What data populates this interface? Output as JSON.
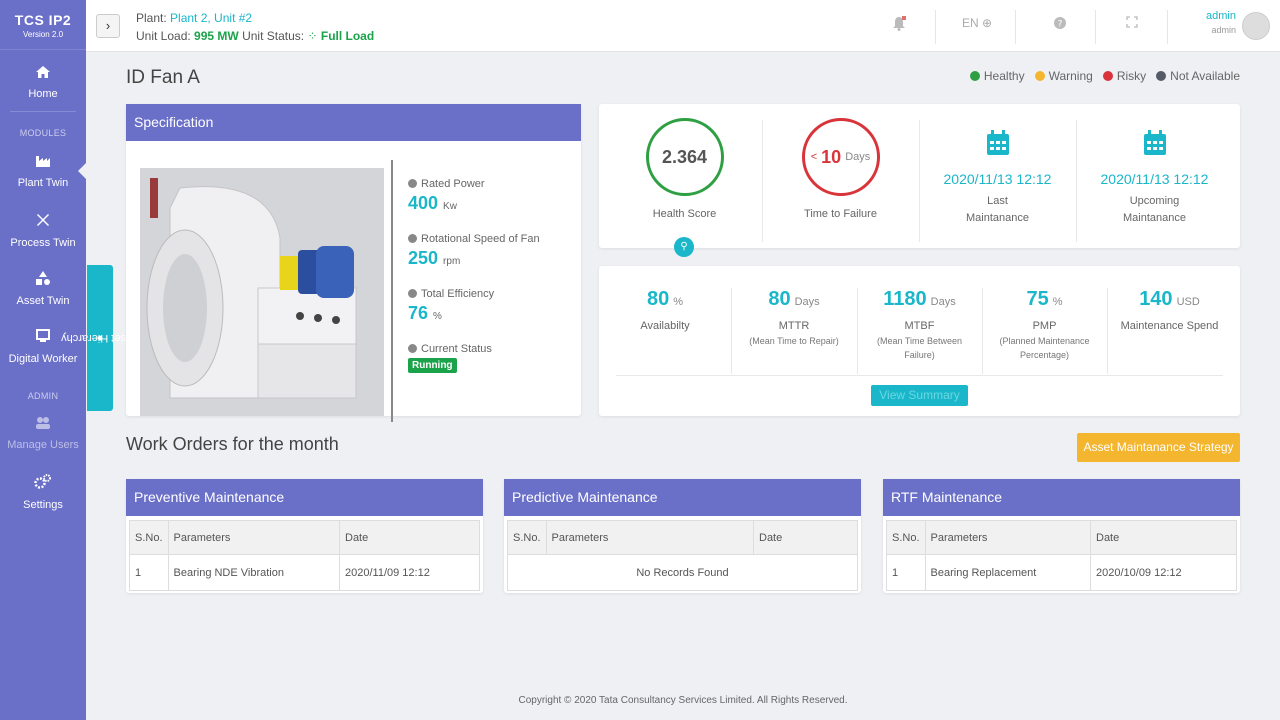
{
  "brand": {
    "name": "TCS IP2",
    "version": "Version 2.0"
  },
  "nav": {
    "home": "Home",
    "modules_label": "MODULES",
    "plant_twin": "Plant Twin",
    "process_twin": "Process Twin",
    "asset_twin": "Asset Twin",
    "digital_worker": "Digital Worker",
    "admin_label": "ADMIN",
    "manage_users": "Manage Users",
    "settings": "Settings"
  },
  "header": {
    "plant_label": "Plant:",
    "plant_value": "Plant 2, Unit #2",
    "unit_load_label": "Unit Load:",
    "unit_load_value": "995 MW",
    "unit_status_label": "Unit Status:",
    "unit_status_value": "Full Load",
    "language": "EN",
    "user_name": "admin",
    "user_role": "admin"
  },
  "asset_tab": "Asset Hierarchy",
  "page_title": "ID Fan A",
  "legend": [
    {
      "label": "Healthy",
      "color": "#2ea043"
    },
    {
      "label": "Warning",
      "color": "#f4b52f"
    },
    {
      "label": "Risky",
      "color": "#d9343a"
    },
    {
      "label": "Not Available",
      "color": "#555a66"
    }
  ],
  "spec": {
    "title": "Specification",
    "rated_power_label": "Rated Power",
    "rated_power_value": "400",
    "rated_power_unit": "Kw",
    "speed_label": "Rotational Speed of Fan",
    "speed_value": "250",
    "speed_unit": "rpm",
    "efficiency_label": "Total Efficiency",
    "efficiency_value": "76",
    "efficiency_unit": "%",
    "status_label": "Current Status",
    "status_value": "Running"
  },
  "health": {
    "score": "2.364",
    "score_label": "Health Score",
    "ttf_prefix": "<",
    "ttf_value": "10",
    "ttf_unit": "Days",
    "ttf_label": "Time to Failure",
    "last_date": "2020/11/13 12:12",
    "last_label_1": "Last",
    "last_label_2": "Maintanance",
    "upcoming_date": "2020/11/13 12:12",
    "upcoming_label_1": "Upcoming",
    "upcoming_label_2": "Maintanance"
  },
  "kpis": [
    {
      "value": "80",
      "unit": "%",
      "label": "Availabilty",
      "sub1": "",
      "sub2": ""
    },
    {
      "value": "80",
      "unit": "Days",
      "label": "MTTR",
      "sub1": "(Mean Time to Repair)",
      "sub2": ""
    },
    {
      "value": "1180",
      "unit": "Days",
      "label": "MTBF",
      "sub1": "(Mean Time Between",
      "sub2": "Failure)"
    },
    {
      "value": "75",
      "unit": "%",
      "label": "PMP",
      "sub1": "(Planned Maintenance",
      "sub2": "Percentage)"
    },
    {
      "value": "140",
      "unit": "USD",
      "label": "Maintenance Spend",
      "sub1": "",
      "sub2": ""
    }
  ],
  "view_summary": "View Summary",
  "work_orders_title": "Work Orders for the month",
  "strategy_button": "Asset Maintanance Strategy",
  "tables": {
    "headers": {
      "sno": "S.No.",
      "params": "Parameters",
      "date": "Date"
    },
    "preventive": {
      "title": "Preventive Maintenance",
      "row": {
        "sno": "1",
        "param": "Bearing NDE Vibration",
        "date": "2020/11/09 12:12"
      }
    },
    "predictive": {
      "title": "Predictive Maintenance",
      "empty": "No Records Found"
    },
    "rtf": {
      "title": "RTF Maintenance",
      "row": {
        "sno": "1",
        "param": "Bearing Replacement",
        "date": "2020/10/09 12:12"
      }
    }
  },
  "footer": "Copyright © 2020 Tata Consultancy Services Limited. All Rights Reserved."
}
